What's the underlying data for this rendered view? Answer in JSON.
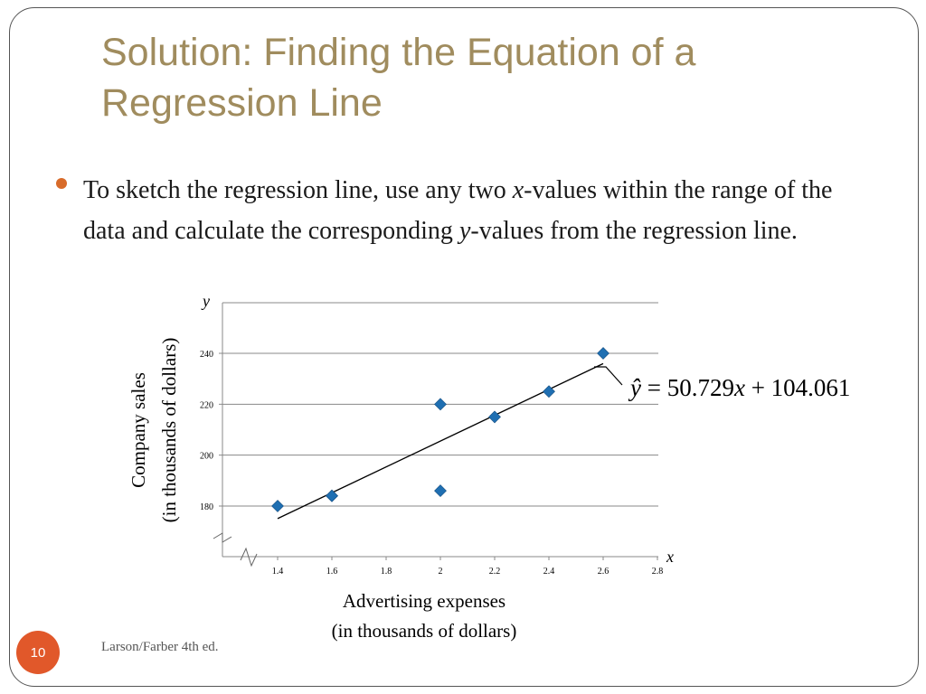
{
  "slide": {
    "title_line1": "Solution: Finding the Equation of a",
    "title_line2": "Regression Line",
    "bullet": {
      "part1": "To sketch the regression line, use any two ",
      "var_x": "x",
      "part2": "-values within the range of the data and calculate the corresponding ",
      "var_y": "y",
      "part3": "-values from the regression line."
    },
    "slide_number": "10",
    "footer": "Larson/Farber 4th ed.",
    "colors": {
      "title": "#a08c5e",
      "bullet": "#d86b2a",
      "badge": "#e1582a",
      "marker": "#1f6fb2"
    }
  },
  "chart_data": {
    "type": "scatter",
    "points": [
      {
        "x": 2.4,
        "y": 225
      },
      {
        "x": 1.6,
        "y": 184
      },
      {
        "x": 2.0,
        "y": 220
      },
      {
        "x": 2.6,
        "y": 240
      },
      {
        "x": 1.4,
        "y": 180
      },
      {
        "x": 1.6,
        "y": 184
      },
      {
        "x": 2.0,
        "y": 186
      },
      {
        "x": 2.2,
        "y": 215
      }
    ],
    "regression_line": {
      "x_start": 1.4,
      "x_end": 2.6,
      "slope": 50.729,
      "intercept": 104.061
    },
    "equation": {
      "lhs": "ŷ",
      "eq": " = ",
      "coef": "50.729",
      "var": "x",
      "rest": " + 104.061"
    },
    "x_ticks": [
      "1.4",
      "1.6",
      "1.8",
      "2",
      "2.2",
      "2.4",
      "2.6",
      "2.8"
    ],
    "x_tick_values": [
      1.4,
      1.6,
      1.8,
      2.0,
      2.2,
      2.4,
      2.6,
      2.8
    ],
    "y_ticks": [
      "180",
      "200",
      "220",
      "240"
    ],
    "y_tick_values": [
      180,
      200,
      220,
      240
    ],
    "x_axis_symbol": "x",
    "y_axis_symbol": "y",
    "xlabel_line1": "Advertising expenses",
    "xlabel_line2": "(in thousands of dollars)",
    "ylabel_line1": "Company sales",
    "ylabel_line2": "(in thousands of dollars)",
    "xlim": [
      1.2,
      2.8
    ],
    "ylim": [
      160,
      260
    ],
    "grid": "horizontal"
  }
}
